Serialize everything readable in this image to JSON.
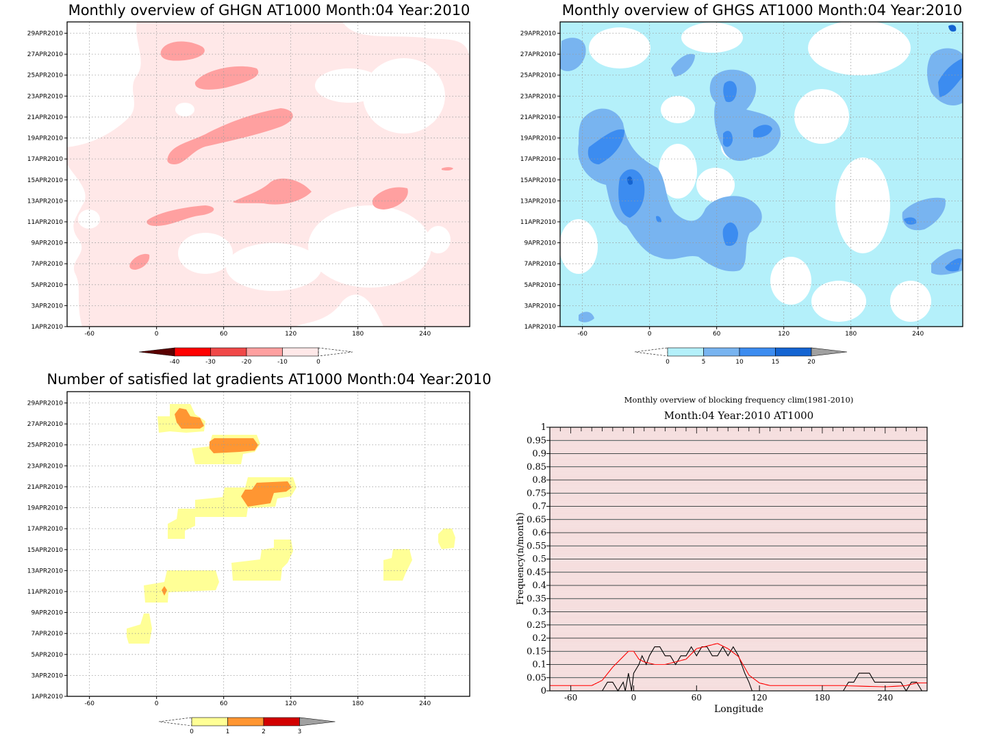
{
  "chart_data": [
    {
      "type": "heatmap",
      "title": "Monthly overview of GHGN AT1000 Month:04 Year:2010",
      "x_ticks": [
        -60,
        0,
        60,
        120,
        180,
        240
      ],
      "xlim": [
        -80,
        280
      ],
      "y_ticks": [
        "1APR2010",
        "3APR2010",
        "5APR2010",
        "7APR2010",
        "9APR2010",
        "11APR2010",
        "13APR2010",
        "15APR2010",
        "17APR2010",
        "19APR2010",
        "21APR2010",
        "23APR2010",
        "25APR2010",
        "27APR2010",
        "29APR2010"
      ],
      "colorbar": {
        "labels": [
          "-40",
          "-30",
          "-20",
          "-10",
          "0"
        ],
        "colors": [
          "#5a0000",
          "#ff0000",
          "#f04848",
          "#ffa0a0",
          "#ffe8e8"
        ]
      },
      "grid": true
    },
    {
      "type": "heatmap",
      "title": "Monthly overview of GHGS AT1000 Month:04 Year:2010",
      "x_ticks": [
        -60,
        0,
        60,
        120,
        180,
        240
      ],
      "xlim": [
        -80,
        280
      ],
      "y_ticks": [
        "1APR2010",
        "3APR2010",
        "5APR2010",
        "7APR2010",
        "9APR2010",
        "11APR2010",
        "13APR2010",
        "15APR2010",
        "17APR2010",
        "19APR2010",
        "21APR2010",
        "23APR2010",
        "25APR2010",
        "27APR2010",
        "29APR2010"
      ],
      "colorbar": {
        "labels": [
          "0",
          "5",
          "10",
          "15",
          "20"
        ],
        "colors": [
          "#b4f0fa",
          "#78b4f0",
          "#3c8cf0",
          "#1464d2",
          "#a0a0a0"
        ]
      },
      "grid": true
    },
    {
      "type": "heatmap",
      "title": "Number of satisfied lat gradients AT1000 Month:04 Year:2010",
      "x_ticks": [
        -60,
        0,
        60,
        120,
        180,
        240
      ],
      "xlim": [
        -80,
        280
      ],
      "y_ticks": [
        "1APR2010",
        "3APR2010",
        "5APR2010",
        "7APR2010",
        "9APR2010",
        "11APR2010",
        "13APR2010",
        "15APR2010",
        "17APR2010",
        "19APR2010",
        "21APR2010",
        "23APR2010",
        "25APR2010",
        "27APR2010",
        "29APR2010"
      ],
      "colorbar": {
        "labels": [
          "0",
          "1",
          "2",
          "3"
        ],
        "colors": [
          "#ffff96",
          "#ff9632",
          "#d20000",
          "#a0a0a0"
        ]
      },
      "grid": true
    },
    {
      "type": "line",
      "title": "Monthly overview of blocking frequency clim(1981-2010)",
      "subtitle": "Month:04 Year:2010  AT1000",
      "xlabel": "Longitude",
      "ylabel": "Frequency(n/month)",
      "xlim": [
        -80,
        280
      ],
      "ylim": [
        0,
        1
      ],
      "x_ticks": [
        -60,
        0,
        60,
        120,
        180,
        240
      ],
      "y_ticks": [
        "0",
        "0.05",
        "0.1",
        "0.15",
        "0.2",
        "0.25",
        "0.3",
        "0.35",
        "0.4",
        "0.45",
        "0.5",
        "0.55",
        "0.6",
        "0.65",
        "0.7",
        "0.75",
        "0.8",
        "0.85",
        "0.9",
        "0.95",
        "1"
      ],
      "series": [
        {
          "color": "#000000",
          "x": [
            -80,
            -30,
            -25,
            -20,
            -15,
            -10,
            -8,
            -5,
            -2,
            0,
            5,
            8,
            12,
            15,
            20,
            25,
            30,
            35,
            40,
            45,
            50,
            55,
            60,
            65,
            70,
            75,
            80,
            85,
            90,
            95,
            100,
            103,
            106,
            110,
            113,
            200,
            205,
            210,
            215,
            220,
            225,
            230,
            235,
            250,
            255,
            260,
            265,
            270,
            275,
            280
          ],
          "y": [
            0,
            0,
            0.033,
            0.033,
            0,
            0.033,
            0,
            0.067,
            0,
            0.067,
            0.1,
            0.133,
            0.1,
            0.133,
            0.167,
            0.167,
            0.133,
            0.133,
            0.1,
            0.133,
            0.133,
            0.167,
            0.133,
            0.167,
            0.167,
            0.133,
            0.133,
            0.167,
            0.133,
            0.167,
            0.133,
            0.1,
            0.067,
            0.033,
            0,
            0,
            0.033,
            0.033,
            0.067,
            0.067,
            0.067,
            0.033,
            0.033,
            0.033,
            0.033,
            0,
            0.033,
            0.033,
            0,
            0
          ]
        },
        {
          "color": "#ff0000",
          "x": [
            -80,
            -60,
            -40,
            -30,
            -20,
            -10,
            -5,
            0,
            5,
            10,
            20,
            30,
            40,
            50,
            60,
            70,
            80,
            90,
            100,
            110,
            120,
            130,
            160,
            200,
            240,
            260,
            270,
            280
          ],
          "y": [
            0.02,
            0.02,
            0.02,
            0.04,
            0.09,
            0.13,
            0.15,
            0.15,
            0.12,
            0.11,
            0.1,
            0.1,
            0.11,
            0.12,
            0.16,
            0.17,
            0.18,
            0.16,
            0.13,
            0.06,
            0.03,
            0.02,
            0.02,
            0.02,
            0.015,
            0.02,
            0.03,
            0.03
          ]
        }
      ],
      "grid": true
    }
  ]
}
